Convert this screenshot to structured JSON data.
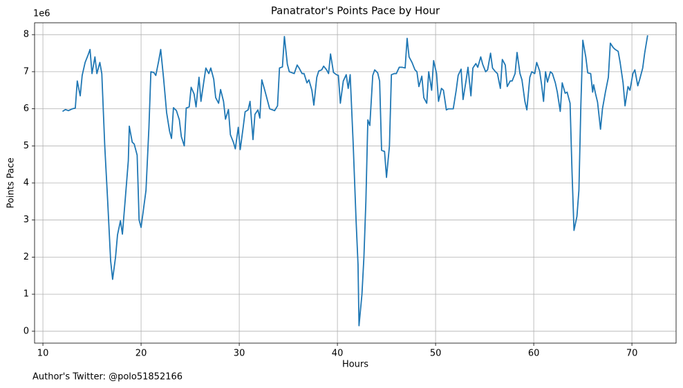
{
  "chart_data": {
    "type": "line",
    "title": "Panatrator's Points Pace by Hour",
    "xlabel": "Hours",
    "ylabel": "Points Pace",
    "y_offset_label": "1e6",
    "footnote": "Author's Twitter: @polo51852166",
    "color": "#1f77b4",
    "grid": true,
    "xlim": [
      9.15,
      74.5
    ],
    "ylim": [
      -0.32,
      8.32
    ],
    "xticks": [
      10,
      20,
      30,
      40,
      50,
      60,
      70
    ],
    "yticks": [
      0,
      1,
      2,
      3,
      4,
      5,
      6,
      7,
      8
    ],
    "x": [
      12.0,
      12.3,
      12.6,
      13.0,
      13.3,
      13.5,
      13.8,
      14.0,
      14.3,
      14.6,
      14.8,
      15.0,
      15.3,
      15.5,
      15.8,
      16.0,
      16.3,
      16.6,
      16.9,
      17.1,
      17.4,
      17.6,
      17.9,
      18.1,
      18.4,
      18.7,
      18.8,
      19.1,
      19.3,
      19.6,
      19.8,
      20.0,
      20.3,
      20.5,
      20.8,
      21.0,
      21.3,
      21.5,
      21.8,
      22.0,
      22.3,
      22.6,
      22.9,
      23.1,
      23.3,
      23.6,
      23.9,
      24.1,
      24.4,
      24.6,
      24.9,
      25.1,
      25.4,
      25.6,
      25.9,
      26.1,
      26.4,
      26.6,
      26.9,
      27.1,
      27.4,
      27.6,
      27.9,
      28.1,
      28.4,
      28.6,
      28.9,
      29.1,
      29.4,
      29.6,
      29.9,
      30.1,
      30.4,
      30.6,
      30.9,
      31.1,
      31.4,
      31.6,
      31.9,
      32.1,
      32.3,
      32.6,
      33.1,
      33.6,
      33.9,
      34.1,
      34.4,
      34.6,
      34.9,
      35.1,
      35.6,
      35.9,
      36.1,
      36.4,
      36.6,
      36.9,
      37.1,
      37.4,
      37.6,
      37.9,
      38.1,
      38.4,
      38.6,
      38.9,
      39.1,
      39.3,
      39.6,
      39.9,
      40.1,
      40.3,
      40.6,
      40.9,
      41.1,
      41.3,
      41.6,
      41.9,
      42.1,
      42.2,
      42.5,
      42.7,
      42.9,
      43.1,
      43.3,
      43.6,
      43.8,
      44.1,
      44.3,
      44.5,
      44.8,
      45.0,
      45.3,
      45.5,
      45.8,
      46.0,
      46.3,
      46.6,
      46.9,
      47.1,
      47.3,
      47.6,
      47.9,
      48.1,
      48.3,
      48.6,
      48.8,
      49.1,
      49.3,
      49.6,
      49.8,
      50.1,
      50.3,
      50.6,
      50.8,
      51.1,
      51.3,
      51.8,
      52.1,
      52.3,
      52.6,
      52.8,
      53.1,
      53.3,
      53.6,
      53.8,
      54.1,
      54.3,
      54.6,
      54.8,
      55.1,
      55.3,
      55.6,
      55.8,
      56.1,
      56.3,
      56.6,
      56.8,
      57.1,
      57.3,
      57.6,
      57.8,
      58.1,
      58.3,
      58.6,
      58.8,
      59.1,
      59.3,
      59.6,
      59.8,
      60.1,
      60.3,
      60.6,
      60.8,
      61.0,
      61.2,
      61.4,
      61.7,
      61.9,
      62.2,
      62.4,
      62.7,
      62.9,
      63.2,
      63.4,
      63.7,
      63.9,
      64.1,
      64.4,
      64.6,
      64.8,
      65.0,
      65.3,
      65.5,
      65.8,
      66.0,
      66.1,
      66.3,
      66.5,
      66.8,
      67.0,
      67.3,
      67.6,
      67.8,
      68.1,
      68.3,
      68.6,
      68.8,
      69.1,
      69.3,
      69.6,
      69.8,
      70.1,
      70.3,
      70.6,
      70.8,
      71.1,
      71.3,
      71.6
    ],
    "values": [
      5.93,
      5.98,
      5.95,
      6.0,
      6.02,
      6.75,
      6.35,
      6.9,
      7.25,
      7.45,
      7.6,
      6.95,
      7.4,
      6.95,
      7.25,
      6.95,
      5.0,
      3.5,
      1.9,
      1.4,
      2.0,
      2.6,
      2.98,
      2.62,
      3.6,
      4.6,
      5.53,
      5.1,
      5.05,
      4.75,
      3.0,
      2.8,
      3.4,
      3.8,
      5.5,
      7.0,
      6.98,
      6.9,
      7.3,
      7.6,
      6.8,
      5.9,
      5.4,
      5.2,
      6.03,
      5.95,
      5.7,
      5.25,
      5.0,
      6.02,
      6.05,
      6.58,
      6.4,
      6.05,
      6.85,
      6.2,
      6.75,
      7.1,
      6.95,
      7.1,
      6.8,
      6.3,
      6.15,
      6.52,
      6.2,
      5.72,
      5.98,
      5.3,
      5.1,
      4.92,
      5.5,
      4.9,
      5.5,
      5.92,
      5.97,
      6.2,
      5.17,
      5.85,
      5.97,
      5.75,
      6.78,
      6.5,
      6.0,
      5.95,
      6.08,
      7.1,
      7.13,
      7.95,
      7.2,
      7.0,
      6.95,
      7.18,
      7.1,
      6.95,
      6.95,
      6.7,
      6.78,
      6.5,
      6.1,
      6.85,
      7.02,
      7.05,
      7.15,
      7.05,
      6.95,
      7.48,
      6.98,
      6.92,
      6.9,
      6.15,
      6.75,
      6.92,
      6.55,
      6.92,
      5.1,
      3.0,
      1.8,
      0.15,
      1.0,
      2.0,
      3.5,
      5.7,
      5.55,
      6.9,
      7.05,
      6.97,
      6.75,
      4.88,
      4.85,
      4.15,
      5.0,
      6.92,
      6.95,
      6.95,
      7.12,
      7.12,
      7.1,
      7.9,
      7.4,
      7.25,
      7.05,
      7.0,
      6.6,
      6.88,
      6.3,
      6.15,
      7.0,
      6.5,
      7.3,
      6.95,
      6.2,
      6.55,
      6.5,
      5.97,
      6.0,
      6.0,
      6.5,
      6.9,
      7.07,
      6.25,
      6.75,
      7.12,
      6.35,
      7.1,
      7.22,
      7.12,
      7.4,
      7.2,
      7.0,
      7.05,
      7.5,
      7.1,
      7.0,
      6.95,
      6.55,
      7.33,
      7.18,
      6.6,
      6.75,
      6.75,
      6.95,
      7.52,
      6.95,
      6.78,
      6.2,
      5.97,
      6.85,
      7.0,
      6.95,
      7.25,
      7.02,
      6.65,
      6.2,
      7.0,
      6.72,
      7.0,
      6.95,
      6.7,
      6.45,
      5.93,
      6.7,
      6.42,
      6.45,
      6.15,
      4.3,
      2.72,
      3.1,
      3.8,
      6.1,
      7.85,
      7.4,
      6.97,
      6.95,
      6.45,
      6.65,
      6.4,
      6.18,
      5.45,
      6.0,
      6.45,
      6.85,
      7.77,
      7.65,
      7.6,
      7.55,
      7.25,
      6.7,
      6.08,
      6.6,
      6.5,
      6.95,
      7.05,
      6.62,
      6.8,
      7.1,
      7.5,
      7.98
    ]
  }
}
